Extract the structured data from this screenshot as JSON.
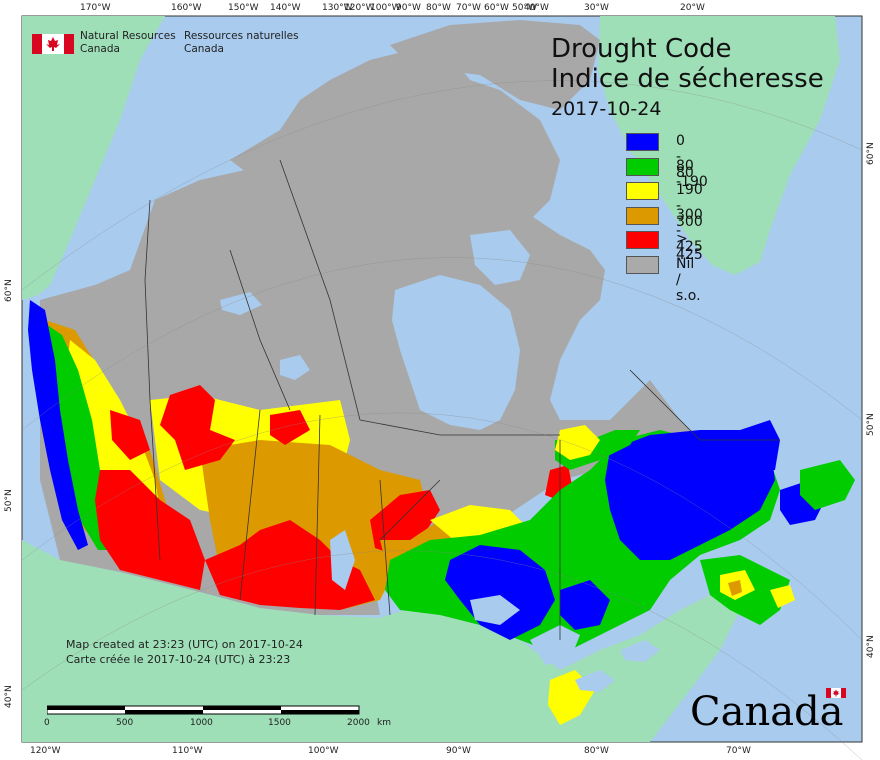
{
  "map": {
    "title_en": "Drought Code",
    "title_fr": "Indice de sécheresse",
    "date": "2017-10-24",
    "legend": [
      {
        "label": "0 - 80",
        "color": "#0000ff"
      },
      {
        "label": "80 -190",
        "color": "#00cc00"
      },
      {
        "label": "190 - 300",
        "color": "#ffff00"
      },
      {
        "label": "300 - 425",
        "color": "#dd9900"
      },
      {
        "label": "> 425",
        "color": "#ff0000"
      },
      {
        "label": "Nil / s.o.",
        "color": "#aaaaaa"
      }
    ],
    "agency_en_line1": "Natural Resources",
    "agency_en_line2": "Canada",
    "agency_fr_line1": "Ressources naturelles",
    "agency_fr_line2": "Canada",
    "note_en": "Map created at 23:23 (UTC) on 2017-10-24",
    "note_fr": "Carte créée le 2017-10-24 (UTC) à 23:23",
    "scale_labels": [
      "0",
      "500",
      "1000",
      "1500",
      "2000"
    ],
    "scale_unit": "km",
    "wordmark": "Canada",
    "top_lon_labels": [
      "170°W",
      "160°W",
      "150°W",
      "140°W",
      "130°W",
      "120°W",
      "100°W",
      "90°W",
      "80°W",
      "70°W",
      "60°W",
      "50°W",
      "40°W",
      "30°W",
      "20°W"
    ],
    "bottom_lon_labels": [
      "120°W",
      "110°W",
      "100°W",
      "90°W",
      "80°W",
      "70°W"
    ],
    "left_lat_labels": [
      "60°N",
      "50°N",
      "40°N"
    ],
    "right_lat_labels": [
      "60°N",
      "50°N",
      "40°N"
    ],
    "colors": {
      "ocean": "#a9cbee",
      "foreign_land": "#9edfb8",
      "nil": "#a8a8a8",
      "water": "#a9cbee"
    }
  }
}
